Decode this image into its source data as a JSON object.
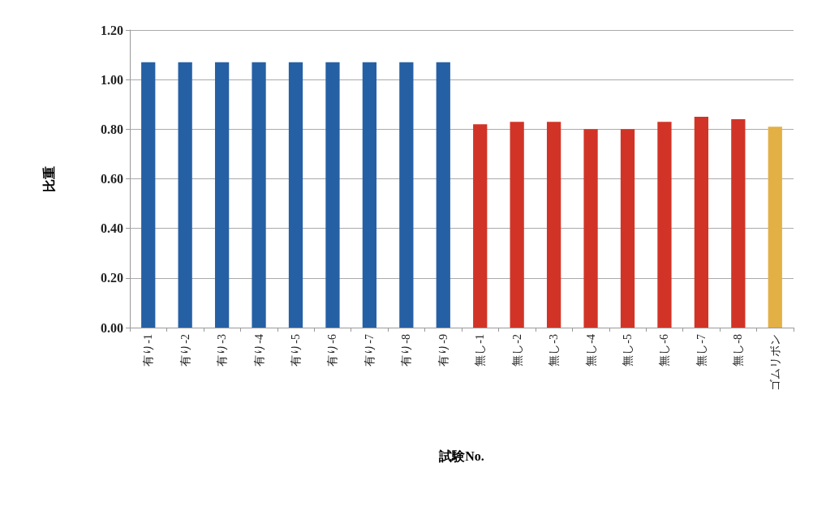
{
  "chart_data": {
    "type": "bar",
    "xlabel": "試験No.",
    "ylabel": "比重",
    "categories": [
      "有り-1",
      "有り-2",
      "有り-3",
      "有り-4",
      "有り-5",
      "有り-6",
      "有り-7",
      "有り-8",
      "有り-9",
      "無し-1",
      "無し-2",
      "無し-3",
      "無し-4",
      "無し-5",
      "無し-6",
      "無し-7",
      "無し-8",
      "ゴムリボン"
    ],
    "values": [
      1.07,
      1.07,
      1.07,
      1.07,
      1.07,
      1.07,
      1.07,
      1.07,
      1.07,
      0.82,
      0.83,
      0.83,
      0.8,
      0.8,
      0.83,
      0.85,
      0.84,
      0.81
    ],
    "colors": [
      "#2660a4",
      "#2660a4",
      "#2660a4",
      "#2660a4",
      "#2660a4",
      "#2660a4",
      "#2660a4",
      "#2660a4",
      "#2660a4",
      "#d13427",
      "#d13427",
      "#d13427",
      "#d13427",
      "#d13427",
      "#d13427",
      "#d13427",
      "#d13427",
      "#e3b045"
    ],
    "ylim": [
      0,
      1.2
    ],
    "yticks": [
      {
        "value": 0,
        "label": "0.00"
      },
      {
        "value": 0.2,
        "label": "0.20"
      },
      {
        "value": 0.4,
        "label": "0.40"
      },
      {
        "value": 0.6,
        "label": "0.60"
      },
      {
        "value": 0.8,
        "label": "0.80"
      },
      {
        "value": 1,
        "label": "1.00"
      },
      {
        "value": 1.2,
        "label": "1.20"
      }
    ],
    "grid": "y"
  }
}
